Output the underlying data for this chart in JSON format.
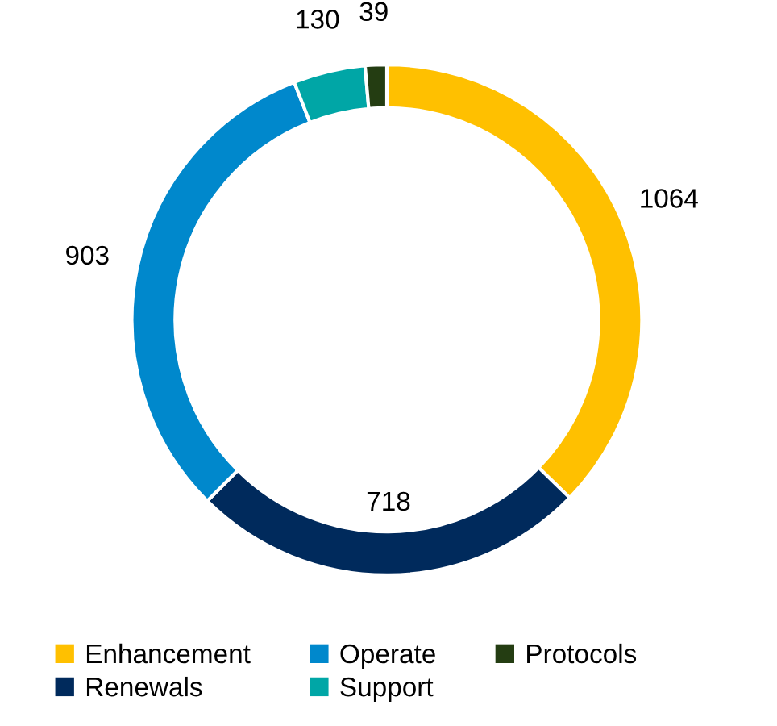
{
  "chart_data": {
    "type": "donut",
    "categories": [
      "Enhancement",
      "Renewals",
      "Operate",
      "Support",
      "Protocols"
    ],
    "values": [
      1064,
      718,
      903,
      130,
      39
    ],
    "colors": [
      "#ffc000",
      "#002a5c",
      "#0088cc",
      "#00a6a6",
      "#243d12"
    ],
    "data_labels": true,
    "legend": "bottom"
  }
}
